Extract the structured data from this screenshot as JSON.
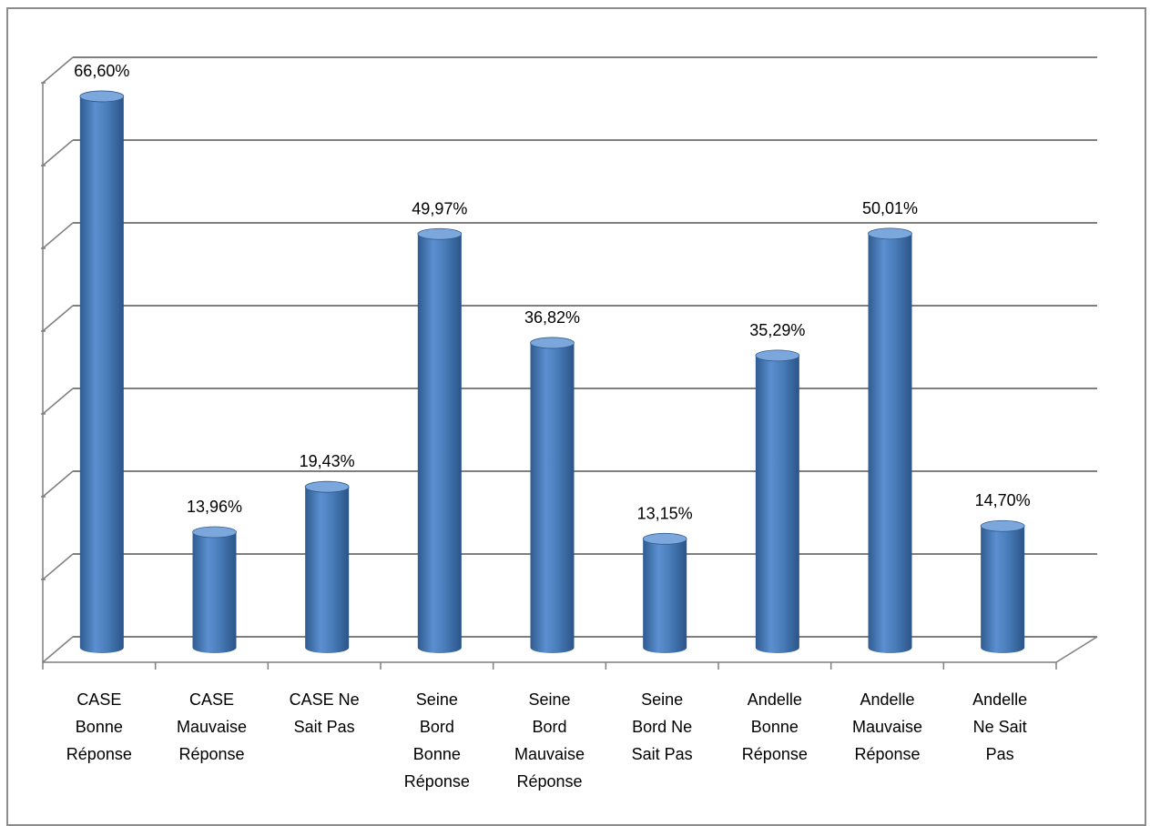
{
  "chart_data": {
    "type": "bar",
    "style": "3d-cylinder",
    "categories": [
      [
        "CASE",
        "Bonne",
        "Réponse"
      ],
      [
        "CASE",
        "Mauvaise",
        "Réponse"
      ],
      [
        "CASE Ne",
        "Sait Pas"
      ],
      [
        "Seine",
        "Bord",
        "Bonne",
        "Réponse"
      ],
      [
        "Seine",
        "Bord",
        "Mauvaise",
        "Réponse"
      ],
      [
        "Seine",
        "Bord Ne",
        "Sait Pas"
      ],
      [
        "Andelle",
        "Bonne",
        "Réponse"
      ],
      [
        "Andelle",
        "Mauvaise",
        "Réponse"
      ],
      [
        "Andelle",
        "Ne Sait",
        "Pas"
      ]
    ],
    "values": [
      66.6,
      13.96,
      19.43,
      49.97,
      36.82,
      13.15,
      35.29,
      50.01,
      14.7
    ],
    "data_labels": [
      "66,60%",
      "13,96%",
      "19,43%",
      "49,97%",
      "36,82%",
      "13,15%",
      "35,29%",
      "50,01%",
      "14,70%"
    ],
    "ylim": [
      0,
      70
    ],
    "y_tick_step": 10,
    "grid": true,
    "y_tick_labels_visible": false,
    "legend": "none",
    "title": "",
    "xlabel": "",
    "ylabel": "",
    "colors": {
      "bar": "#4a7ebb",
      "bar_light": "#7ba7dd",
      "bar_dark": "#2f5b8f",
      "gridline": "#7f7f7f",
      "frame": "#8c8c8c"
    }
  }
}
